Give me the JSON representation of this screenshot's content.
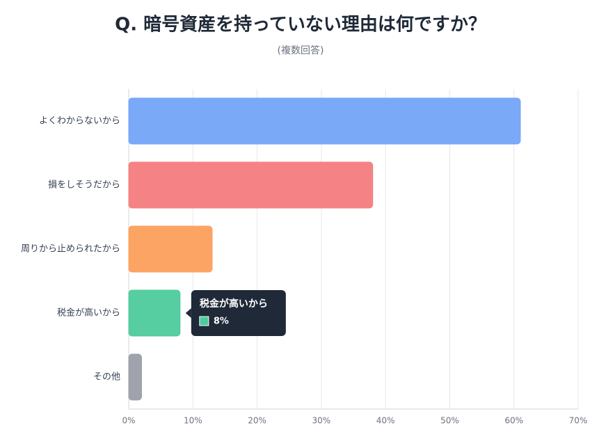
{
  "chart_data": {
    "type": "hbar",
    "title": "Q. 暗号資産を持っていない理由は何ですか？",
    "subtitle": "(複数回答)",
    "categories": [
      "よくわからないから",
      "損をしそうだから",
      "周りから止められたから",
      "税金が高いから",
      "その他"
    ],
    "values": [
      61,
      38,
      13,
      8,
      2
    ],
    "value_labels": [
      null,
      null,
      null,
      "8%",
      null
    ],
    "colors": [
      "#73a4f8",
      "#f47c7e",
      "#fb9f5c",
      "#4ecb9c",
      "#9c9ea8"
    ],
    "xlim": [
      0,
      70
    ],
    "xticks": [
      {
        "value": 0,
        "label": "0%"
      },
      {
        "value": 10,
        "label": "10%"
      },
      {
        "value": 20,
        "label": "20%"
      },
      {
        "value": 30,
        "label": "30%"
      },
      {
        "value": 40,
        "label": "40%"
      },
      {
        "value": 50,
        "label": "50%"
      },
      {
        "value": 60,
        "label": "60%"
      },
      {
        "value": 70,
        "label": "70%"
      }
    ],
    "grid": true
  }
}
